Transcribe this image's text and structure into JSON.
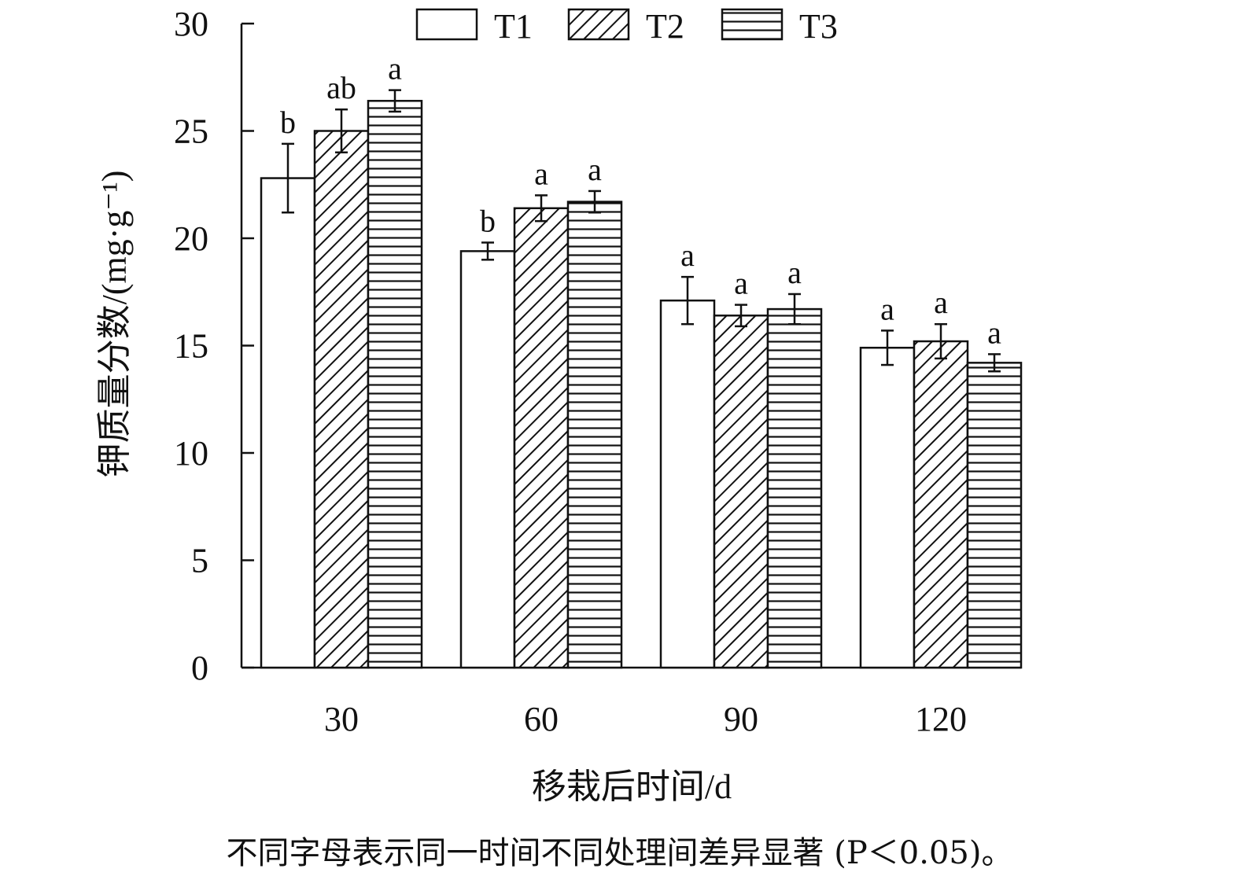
{
  "chart_data": {
    "type": "bar",
    "categories": [
      "30",
      "60",
      "90",
      "120"
    ],
    "series": [
      {
        "name": "T1",
        "pattern": "none",
        "values": [
          22.8,
          19.4,
          17.1,
          14.9
        ],
        "errors": [
          1.6,
          0.4,
          1.1,
          0.8
        ],
        "labels": [
          "b",
          "b",
          "a",
          "a"
        ]
      },
      {
        "name": "T2",
        "pattern": "diagonal",
        "values": [
          25.0,
          21.4,
          16.4,
          15.2
        ],
        "errors": [
          1.0,
          0.6,
          0.5,
          0.8
        ],
        "labels": [
          "ab",
          "a",
          "a",
          "a"
        ]
      },
      {
        "name": "T3",
        "pattern": "horizontal",
        "values": [
          26.4,
          21.7,
          16.7,
          14.2
        ],
        "errors": [
          0.5,
          0.5,
          0.7,
          0.4
        ],
        "labels": [
          "a",
          "a",
          "a",
          "a"
        ]
      }
    ],
    "ylim": [
      0,
      30
    ],
    "yticks": [
      0,
      5,
      10,
      15,
      20,
      25,
      30
    ],
    "xlabel": "移栽后时间/d",
    "ylabel": "钾质量分数/(mg·g⁻¹)",
    "grid": false,
    "legend_position": "top",
    "note": "不同字母表示同一时间不同处理间差异显著 (P＜0.05)。"
  }
}
